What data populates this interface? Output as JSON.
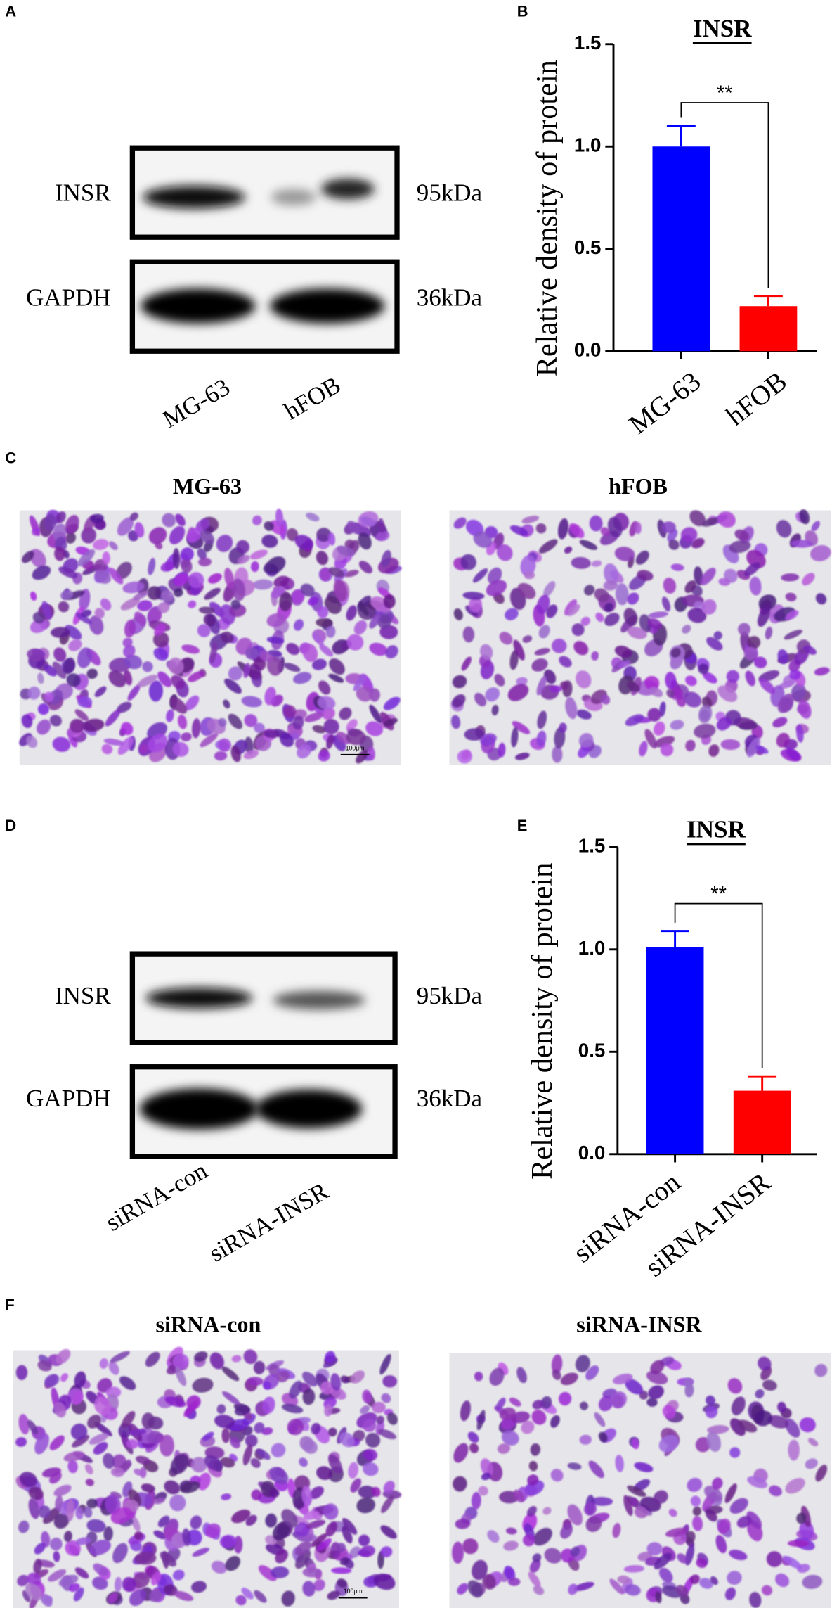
{
  "chart_data": [
    {
      "type": "bar",
      "title": "INSR",
      "y_label": "Relative density of protein",
      "categories": [
        "MG-63",
        "hFOB"
      ],
      "values": [
        1.0,
        0.22
      ],
      "errors": [
        0.1,
        0.05
      ],
      "colors": [
        "#0000ff",
        "#ff0000"
      ],
      "ylim": [
        0,
        1.5
      ],
      "yticks": [
        {
          "value": 0,
          "label": "0.0"
        },
        {
          "value": 0.5,
          "label": "0.5"
        },
        {
          "value": 1,
          "label": "1.0"
        },
        {
          "value": 1.5,
          "label": "1.5"
        }
      ],
      "significance": "**"
    },
    {
      "type": "bar",
      "title": "INSR",
      "y_label": "Relative density of protein",
      "categories": [
        "siRNA-con",
        "siRNA-INSR"
      ],
      "values": [
        1.01,
        0.31
      ],
      "errors": [
        0.08,
        0.07
      ],
      "colors": [
        "#0000ff",
        "#ff0000"
      ],
      "ylim": [
        0,
        1.5
      ],
      "yticks": [
        {
          "value": 0,
          "label": "0.0"
        },
        {
          "value": 0.5,
          "label": "0.5"
        },
        {
          "value": 1,
          "label": "1.0"
        },
        {
          "value": 1.5,
          "label": "1.5"
        }
      ],
      "significance": "**"
    }
  ],
  "panel_labels": [
    "A",
    "B",
    "C",
    "D",
    "E",
    "F"
  ],
  "blots": [
    {
      "bands": [
        {
          "label": "INSR",
          "size": "95kDa"
        },
        {
          "label": "GAPDH",
          "size": "36kDa"
        }
      ],
      "lanes": [
        "MG-63",
        "hFOB"
      ]
    },
    {
      "bands": [
        {
          "label": "INSR",
          "size": "95kDa"
        },
        {
          "label": "GAPDH",
          "size": "36kDa"
        }
      ],
      "lanes": [
        "siRNA-con",
        "siRNA-INSR"
      ]
    }
  ],
  "micrographs": [
    {
      "titles": [
        "MG-63",
        "hFOB"
      ],
      "scale_bar": "100μm"
    },
    {
      "titles": [
        "siRNA-con",
        "siRNA-INSR"
      ],
      "scale_bar": "100μm"
    }
  ]
}
